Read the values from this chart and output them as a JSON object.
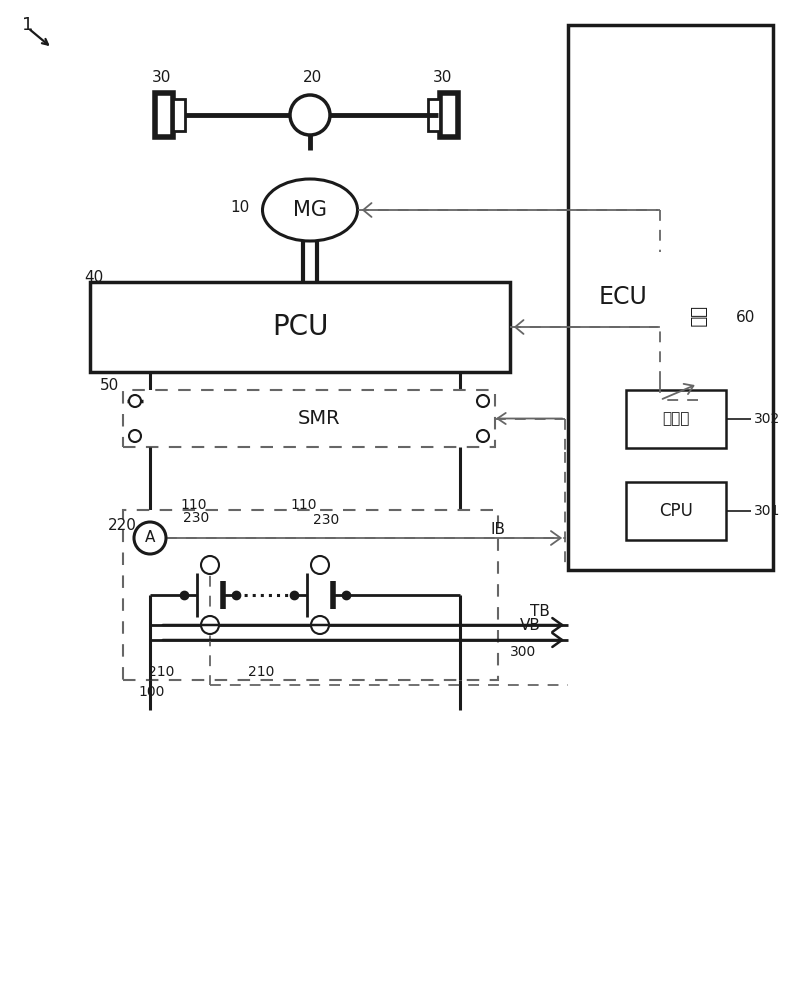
{
  "bg": "#ffffff",
  "lc": "#1a1a1a",
  "dc": "#666666",
  "fig_label": "1",
  "labels": {
    "wheel": "30",
    "axle": "20",
    "mg_num": "10",
    "mg_txt": "MG",
    "pcu_num": "40",
    "pcu_txt": "PCU",
    "smr_num": "50",
    "smr_txt": "SMR",
    "ac_num": "60",
    "ac_txt": "空调",
    "ecu_txt": "ECU",
    "ecu_num": "300",
    "cpu_txt": "CPU",
    "cpu_num": "301",
    "mem_txt": "存储器",
    "mem_num": "302",
    "amm_num": "220",
    "amm_txt": "A",
    "bat_num": "100",
    "cell_num": "110",
    "volt_num": "210",
    "temp_num": "230",
    "ib": "IB",
    "vb": "VB",
    "tb": "TB"
  }
}
